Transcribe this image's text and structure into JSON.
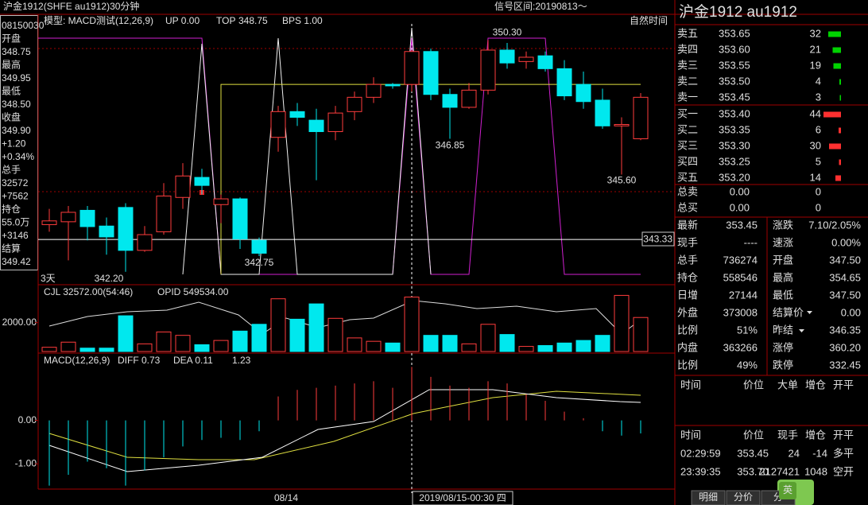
{
  "header": {
    "title": "沪金1912(SHFE au1912)30分钟",
    "signal": "信号区间:20190813～"
  },
  "info_panel": [
    "08150030",
    "开盘",
    "348.75",
    "最高",
    "349.95",
    "最低",
    "348.50",
    "收盘",
    "349.90",
    "+1.20",
    "+0.34%",
    "总手",
    "32572",
    "+7562",
    "持仓",
    "55.0万",
    "+3146",
    "结算",
    "349.42"
  ],
  "colors": {
    "up": "#ff3c3c",
    "down": "#00e8ee",
    "book_sell": "#00d200",
    "book_buy": "#ff3030",
    "top_line": "#e0e040",
    "last_line": "#ffffff"
  },
  "main": {
    "legend": [
      "模型: MACD测试(12,26,9)",
      "UP 0.00"
    ],
    "top": {
      "label": "TOP",
      "value": 348.75
    },
    "bps": "BPS 1.00",
    "mode": "自然时间",
    "range_label": "3天",
    "ylim": [
      342.0,
      351.2
    ],
    "candles": {
      "open": [
        343.85,
        343.95,
        344.35,
        343.8,
        344.45,
        342.95,
        343.6,
        344.8,
        345.5,
        344.55,
        344.75,
        343.3,
        346.9,
        347.8,
        347.5,
        347.1,
        347.8,
        348.3,
        348.75,
        348.75,
        349.9,
        348.4,
        347.95,
        348.55,
        349.95,
        349.55,
        349.75,
        349.3,
        348.75,
        348.2,
        347.3,
        346.85
      ],
      "high": [
        344.4,
        344.5,
        344.5,
        344.1,
        344.6,
        343.8,
        345.3,
        346.0,
        345.8,
        344.9,
        344.8,
        343.4,
        348.0,
        348.1,
        347.9,
        348.0,
        348.5,
        349.0,
        348.8,
        349.95,
        350.0,
        348.6,
        348.8,
        350.3,
        350.2,
        349.9,
        349.9,
        349.6,
        349.2,
        348.6,
        347.6,
        348.45
      ],
      "low": [
        343.6,
        342.6,
        343.3,
        342.8,
        342.2,
        342.9,
        343.5,
        344.4,
        344.9,
        343.9,
        343.0,
        342.75,
        346.4,
        347.3,
        345.4,
        346.8,
        347.5,
        348.1,
        348.6,
        348.5,
        348.2,
        346.85,
        347.9,
        348.4,
        349.3,
        349.3,
        349.2,
        348.2,
        347.9,
        347.2,
        345.6,
        346.8
      ],
      "close": [
        343.98,
        344.28,
        343.78,
        343.42,
        342.95,
        343.5,
        344.85,
        345.55,
        345.22,
        344.75,
        343.35,
        342.85,
        347.8,
        347.6,
        347.1,
        347.75,
        348.3,
        348.75,
        348.7,
        349.9,
        348.4,
        347.95,
        348.55,
        349.95,
        349.5,
        349.7,
        349.3,
        348.35,
        348.15,
        347.3,
        347.35,
        348.3
      ]
    },
    "annotations": [
      {
        "value": 350.3,
        "label": "350.30"
      },
      {
        "value": 346.85,
        "label": "346.85"
      },
      {
        "value": 342.75,
        "label": "342.75"
      },
      {
        "value": 342.2,
        "label": "342.20"
      },
      {
        "value": 345.6,
        "label": "345.60"
      }
    ],
    "last_price": 343.33
  },
  "volume": {
    "legend": [
      "CJL   32572.00(54:46)",
      "OPID 549534.00"
    ],
    "ylim": [
      0,
      4400
    ],
    "yticks": [
      {
        "value": 2000,
        "label": "2000.00"
      }
    ],
    "values": [
      294,
      647,
      235,
      235,
      2471,
      529,
      1353,
      1118,
      471,
      765,
      1412,
      1882,
      3647,
      2235,
      3294,
      2294,
      941,
      706,
      588,
      3765,
      1118,
      1118,
      529,
      1882,
      1176,
      353,
      412,
      588,
      765,
      1118,
      3882,
      2353
    ]
  },
  "macd": {
    "legend": [
      "MACD(12,26,9)",
      "DIFF 0.73",
      "DEA 0.11",
      "1.23"
    ],
    "ylim": [
      -1.58,
      1.51
    ],
    "yticks": [
      {
        "value": 0,
        "label": "0.00"
      },
      {
        "value": -1,
        "label": "-1.00"
      }
    ],
    "values": [
      -1.5,
      -1.25,
      -0.95,
      -1.1,
      -1.5,
      -1.15,
      -0.85,
      -0.6,
      -0.45,
      -0.4,
      -0.45,
      -0.25,
      0.55,
      0.7,
      0.75,
      0.8,
      0.85,
      0.9,
      0.75,
      1.23,
      1.0,
      0.8,
      0.75,
      0.9,
      0.85,
      0.6,
      0.45,
      0.2,
      0.05,
      -0.25,
      -0.35,
      -0.3
    ]
  },
  "x_axis": {
    "labels": [
      "08/14"
    ],
    "cursor": "2019/08/15-00:30 四"
  },
  "quote": {
    "title": "沪金1912  au1912",
    "book": [
      {
        "label": "卖五",
        "price": "353.65",
        "qty": 32
      },
      {
        "label": "卖四",
        "price": "353.60",
        "qty": 21
      },
      {
        "label": "卖三",
        "price": "353.55",
        "qty": 19
      },
      {
        "label": "卖二",
        "price": "353.50",
        "qty": 4
      },
      {
        "label": "卖一",
        "price": "353.45",
        "qty": 3
      },
      {
        "label": "买一",
        "price": "353.40",
        "qty": 44
      },
      {
        "label": "买二",
        "price": "353.35",
        "qty": 6
      },
      {
        "label": "买三",
        "price": "353.30",
        "qty": 30
      },
      {
        "label": "买四",
        "price": "353.25",
        "qty": 5
      },
      {
        "label": "买五",
        "price": "353.20",
        "qty": 14
      }
    ],
    "totals": [
      [
        "总卖",
        "0.00",
        "0"
      ],
      [
        "总买",
        "0.00",
        "0"
      ]
    ],
    "stats": [
      [
        "最新",
        "353.45",
        "涨跌",
        "7.10/2.05%"
      ],
      [
        "现手",
        "----",
        "速涨",
        "0.00%"
      ],
      [
        "总手",
        "736274",
        "开盘",
        "347.50"
      ],
      [
        "持仓",
        "558546",
        "最高",
        "354.65"
      ],
      [
        "日增",
        "27144",
        "最低",
        "347.50"
      ],
      [
        "外盘",
        "373008",
        "结算价",
        "0.00"
      ],
      [
        "比例",
        "51%",
        "昨结",
        "346.35"
      ],
      [
        "内盘",
        "363266",
        "涨停",
        "360.20"
      ],
      [
        "比例",
        "49%",
        "跌停",
        "332.45"
      ]
    ],
    "tick_header_1": [
      "时间",
      "价位",
      "大单",
      "增仓",
      "开平"
    ],
    "tick_header_2": [
      "时间",
      "价位",
      "现手",
      "增仓",
      "开平"
    ],
    "trades": [
      [
        "02:29:59",
        "353.45",
        "24",
        "-14",
        "多平"
      ],
      [
        "23:39:35",
        "353.70",
        "2127421",
        "1048",
        "空开"
      ]
    ],
    "tabs": [
      "明细",
      "分价",
      "分"
    ],
    "ime": "英"
  }
}
